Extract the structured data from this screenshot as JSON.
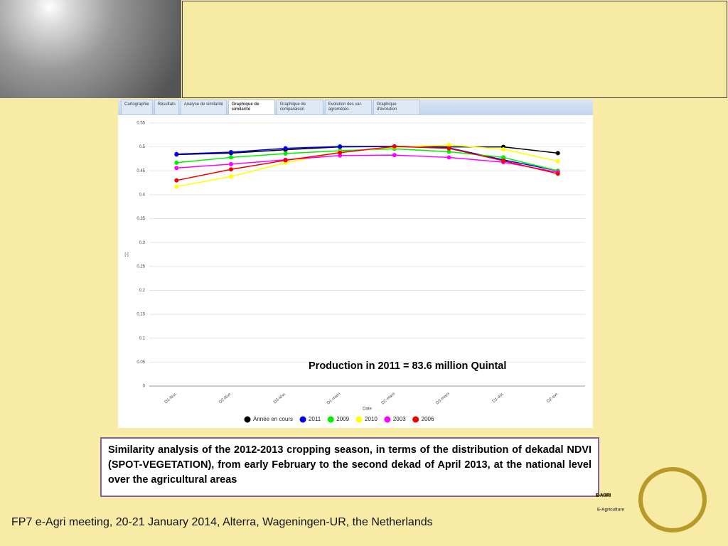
{
  "chart_data": {
    "type": "line",
    "categories": [
      "D1-févr.",
      "D2-févr.",
      "D3-févr.",
      "D1-mars",
      "D2-mars",
      "D3-mars",
      "D1-avr.",
      "D2-avr."
    ],
    "series": [
      {
        "name": "Année en cours",
        "color": "#000000",
        "values": [
          0.484,
          0.487,
          0.494,
          0.5,
          0.501,
          0.5,
          0.5,
          0.487
        ]
      },
      {
        "name": "2011",
        "color": "#0000ee",
        "values": [
          0.485,
          0.489,
          0.497,
          0.501,
          0.501,
          0.498,
          0.473,
          0.45
        ]
      },
      {
        "name": "2009",
        "color": "#00ee00",
        "values": [
          0.467,
          0.478,
          0.486,
          0.492,
          0.496,
          0.49,
          0.478,
          0.45
        ]
      },
      {
        "name": "2010",
        "color": "#ffff00",
        "values": [
          0.417,
          0.438,
          0.467,
          0.489,
          0.499,
          0.504,
          0.495,
          0.47
        ]
      },
      {
        "name": "2003",
        "color": "#ff00ff",
        "values": [
          0.456,
          0.464,
          0.473,
          0.482,
          0.483,
          0.478,
          0.468,
          0.447
        ]
      },
      {
        "name": "2006",
        "color": "#ee0000",
        "values": [
          0.43,
          0.453,
          0.472,
          0.488,
          0.501,
          0.497,
          0.471,
          0.444
        ]
      }
    ],
    "x_label": "Date",
    "y_label": "[-]",
    "ylim": [
      0,
      0.55
    ],
    "yticks": [
      0,
      0.05,
      0.1,
      0.15,
      0.2,
      0.25,
      0.3,
      0.35,
      0.4,
      0.45,
      0.5,
      0.55
    ],
    "grid": true,
    "annotation": "Production in 2011 = 83.6 million Quintal"
  },
  "slide": {
    "tabs": [
      "Cartographie",
      "Résultats",
      "Analyse de similarité",
      "Graphique de similarité",
      "Graphique de comparaison",
      "Evolution des var. agrométéo.",
      "Graphique d'évolution"
    ],
    "caption": "Similarity analysis of the 2012-2013 cropping season, in terms of the distribution of dekadal NDVI (SPOT-VEGETATION), from early February to the second dekad of April 2013, at the national level over the agricultural areas",
    "footer": "FP7 e-Agri meeting, 20-21 January 2014, Alterra, Wageningen-UR, the Netherlands",
    "logo_title": "E-AGRI",
    "logo_subtitle": "E-Agriculture"
  }
}
